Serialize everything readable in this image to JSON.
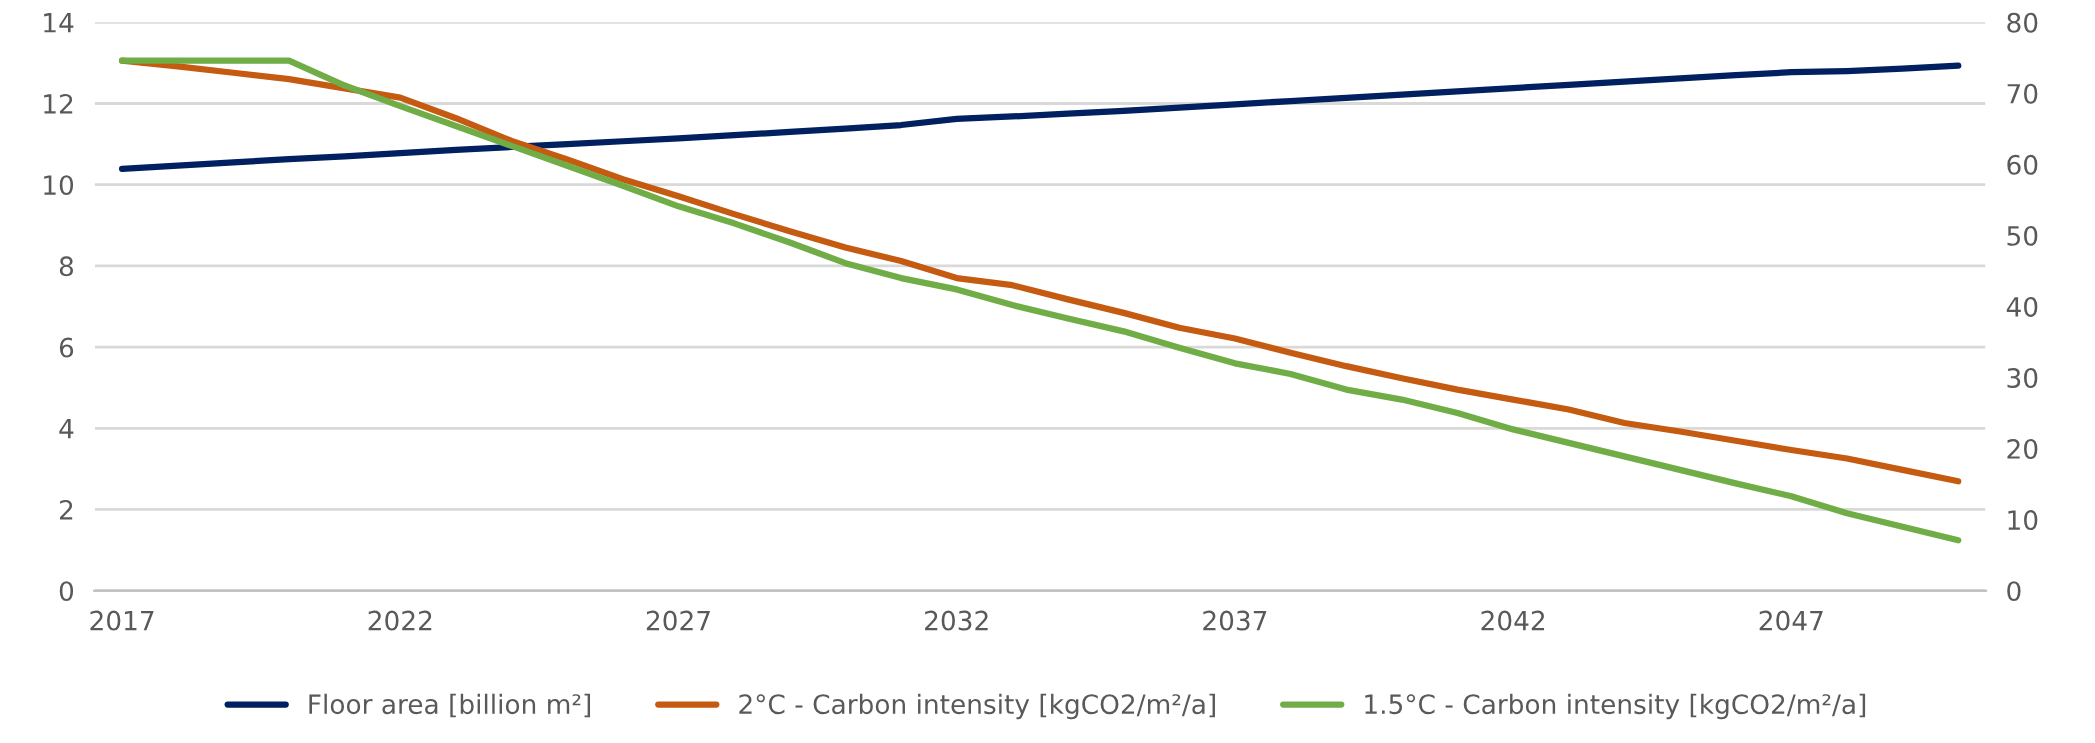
{
  "chart_data": {
    "type": "line",
    "categories": [
      "2017",
      null,
      null,
      null,
      null,
      "2022",
      null,
      null,
      null,
      null,
      "2027",
      null,
      null,
      null,
      null,
      "2032",
      null,
      null,
      null,
      null,
      "2037",
      null,
      null,
      null,
      null,
      "2042",
      null,
      null,
      null,
      null,
      "2047",
      null,
      null,
      null
    ],
    "series": [
      {
        "name": "Floor area [billion m²]",
        "color": "#002060",
        "values": [
          10.39,
          10.47,
          10.55,
          10.63,
          10.7,
          10.78,
          10.86,
          10.93,
          11.0,
          11.07,
          11.14,
          11.22,
          11.3,
          11.38,
          11.47,
          11.62,
          11.68,
          11.75,
          11.82,
          11.9,
          11.98,
          12.06,
          12.14,
          12.22,
          12.3,
          12.38,
          12.46,
          12.54,
          12.62,
          12.7,
          12.77,
          12.8,
          12.86,
          12.93
        ]
      },
      {
        "name": "2°C - Carbon intensity [kgCO2/m²/a]",
        "color": "#c55a11",
        "axis": "y2",
        "values": [
          74.6,
          73.8,
          72.9,
          72.0,
          70.7,
          69.4,
          66.5,
          63.3,
          60.7,
          57.9,
          55.5,
          53.0,
          50.6,
          48.3,
          46.4,
          44.0,
          43.0,
          41.0,
          39.1,
          37.0,
          35.5,
          33.5,
          31.6,
          29.9,
          28.3,
          26.9,
          25.5,
          23.6,
          22.4,
          21.1,
          19.8,
          18.6,
          17.0,
          15.4
        ]
      },
      {
        "name": "1.5°C - Carbon intensity [kgCO2/m²/a]",
        "color": "#70ad47",
        "axis": "y2",
        "values": [
          74.6,
          74.6,
          74.6,
          74.6,
          71.1,
          68.2,
          65.4,
          62.6,
          59.8,
          57.0,
          54.1,
          51.7,
          49.0,
          46.1,
          44.0,
          42.4,
          40.2,
          38.3,
          36.5,
          34.2,
          32.0,
          30.5,
          28.3,
          26.9,
          25.0,
          22.7,
          20.8,
          18.9,
          17.0,
          15.1,
          13.3,
          10.9,
          9.0,
          7.1
        ]
      }
    ],
    "ylim": [
      0,
      14
    ],
    "yticks": [
      0,
      2,
      4,
      6,
      8,
      10,
      12,
      14
    ],
    "y2lim": [
      0,
      80
    ],
    "y2ticks": [
      0,
      10,
      20,
      30,
      40,
      50,
      60,
      70,
      80
    ],
    "grid": "y",
    "legend": "bottom",
    "marker": "none",
    "line_style": "solid"
  }
}
